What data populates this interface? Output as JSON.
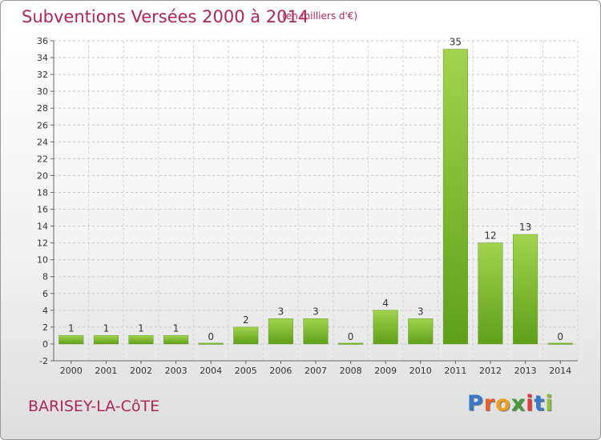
{
  "header": {
    "title": "Subventions Versées 2000 à 2014",
    "subtitle": "(en milliers d'€)"
  },
  "footer": {
    "commune": "BARISEY-LA-CôTE",
    "logo_letters": [
      "P",
      "r",
      "o",
      "x",
      "i",
      "t",
      "i"
    ],
    "logo_colors": [
      "#3a78c8",
      "#e8622a",
      "#f0a020",
      "#4a9a3a",
      "#e63a3a",
      "#3a78c8",
      "#8cc63f"
    ]
  },
  "chart_data": {
    "type": "bar",
    "title": "Subventions Versées 2000 à 2014",
    "subtitle": "(en milliers d'€)",
    "categories": [
      "2000",
      "2001",
      "2002",
      "2003",
      "2004",
      "2005",
      "2006",
      "2007",
      "2008",
      "2009",
      "2010",
      "2011",
      "2012",
      "2013",
      "2014"
    ],
    "values": [
      1,
      1,
      1,
      1,
      0,
      2,
      3,
      3,
      0,
      4,
      3,
      35,
      12,
      13,
      0
    ],
    "ylim": [
      -2,
      36
    ],
    "yticks": [
      -2,
      0,
      2,
      4,
      6,
      8,
      10,
      12,
      14,
      16,
      18,
      20,
      22,
      24,
      26,
      28,
      30,
      32,
      34,
      36
    ],
    "grid": true,
    "bar_color": "#7cbd2e",
    "bar_color_light": "#9ccf4a"
  }
}
